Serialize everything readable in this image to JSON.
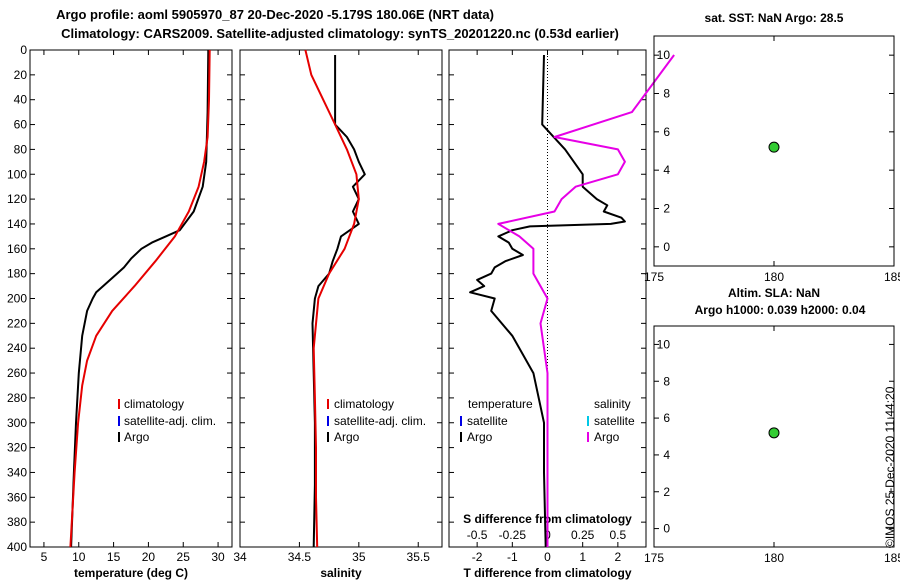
{
  "title_line1": "Argo profile: aoml 5905970_87 20-Dec-2020 -5.179S 180.06E (NRT data)",
  "title_line2": "Climatology: CARS2009. Satellite-adjusted climatology: synTS_20201220.nc (0.53d earlier)",
  "watermark": "©IMOS 25-Dec-2020 11:44:20",
  "colors": {
    "climatology": "#e60000",
    "satellite": "#0000e6",
    "argo": "#000000",
    "argo_salinity_diff": "#e600e6",
    "satellite_salinity_diff": "#00c8e6",
    "marker": "#33cc33"
  },
  "legend_main": [
    "climatology",
    "satellite-adj. clim.",
    "Argo"
  ],
  "legend_diff": {
    "left_title": "temperature",
    "left_items": [
      "satellite",
      "Argo"
    ],
    "right_title": "salinity",
    "right_items": [
      "satellite",
      "Argo"
    ]
  },
  "chart_data": [
    {
      "type": "line",
      "id": "temperature",
      "xlabel": "temperature (deg C)",
      "xlim": [
        3,
        32
      ],
      "ylim": [
        0,
        400
      ],
      "xticks": [
        5,
        10,
        15,
        20,
        25,
        30
      ],
      "yticks": [
        0,
        20,
        40,
        60,
        80,
        100,
        120,
        140,
        160,
        180,
        200,
        220,
        240,
        260,
        280,
        300,
        320,
        340,
        360,
        380,
        400
      ],
      "series": [
        {
          "name": "Argo",
          "color": "#000000",
          "depth": [
            0,
            50,
            90,
            110,
            130,
            145,
            150,
            155,
            160,
            168,
            175,
            180,
            185,
            190,
            195,
            200,
            210,
            230,
            260,
            300,
            340,
            370,
            400
          ],
          "values": [
            28.6,
            28.5,
            28.3,
            27.8,
            26.5,
            24.5,
            22.5,
            20.5,
            19.0,
            17.5,
            16.5,
            15.5,
            14.5,
            13.5,
            12.5,
            12.0,
            11.2,
            10.5,
            10.0,
            9.6,
            9.3,
            9.1,
            8.9
          ]
        },
        {
          "name": "climatology",
          "color": "#e60000",
          "depth": [
            0,
            40,
            70,
            90,
            110,
            130,
            150,
            170,
            190,
            210,
            230,
            250,
            270,
            300,
            340,
            380,
            400
          ],
          "values": [
            28.8,
            28.7,
            28.5,
            28.0,
            27.2,
            25.8,
            23.8,
            21.0,
            18.0,
            14.8,
            12.5,
            11.2,
            10.5,
            9.9,
            9.4,
            9.0,
            8.8
          ]
        }
      ]
    },
    {
      "type": "line",
      "id": "salinity",
      "xlabel": "salinity",
      "xlim": [
        34,
        35.7
      ],
      "ylim": [
        0,
        400
      ],
      "xticks": [
        34,
        34.5,
        35,
        35.5
      ],
      "tick_labels": [
        "34",
        "34.5",
        "35",
        "35.5"
      ],
      "series": [
        {
          "name": "Argo",
          "color": "#000000",
          "depth": [
            4,
            60,
            70,
            80,
            90,
            100,
            110,
            120,
            130,
            140,
            150,
            160,
            170,
            180,
            190,
            200,
            220,
            260,
            300,
            350,
            400
          ],
          "values": [
            34.8,
            34.8,
            34.9,
            34.96,
            35.0,
            35.05,
            34.95,
            35.0,
            34.95,
            35.0,
            34.85,
            34.82,
            34.78,
            34.75,
            34.66,
            34.63,
            34.61,
            34.62,
            34.63,
            34.63,
            34.62
          ]
        },
        {
          "name": "climatology",
          "color": "#e60000",
          "depth": [
            0,
            20,
            40,
            60,
            80,
            100,
            120,
            140,
            160,
            180,
            200,
            240,
            280,
            320,
            360,
            400
          ],
          "values": [
            34.55,
            34.6,
            34.7,
            34.8,
            34.9,
            34.98,
            35.0,
            34.96,
            34.88,
            34.75,
            34.66,
            34.62,
            34.63,
            34.64,
            34.64,
            34.65
          ]
        }
      ]
    },
    {
      "type": "line",
      "id": "difference",
      "xlabel": "T difference from climatology",
      "xlabel_top": "S difference from climatology",
      "xlim": [
        -2.8,
        2.8
      ],
      "ylim": [
        0,
        400
      ],
      "xticks": [
        -2,
        -1,
        0,
        1,
        2
      ],
      "top_ticks": [
        -0.5,
        -0.25,
        0,
        0.25,
        0.5
      ],
      "top_tick_labels": [
        "-0.5",
        "-0.25",
        "0",
        "0.25",
        "0.5"
      ],
      "series": [
        {
          "name": "Argo temperature",
          "color": "#000000",
          "depth": [
            4,
            60,
            80,
            100,
            110,
            120,
            125,
            130,
            135,
            138,
            140,
            142,
            145,
            150,
            155,
            160,
            165,
            170,
            175,
            180,
            185,
            190,
            195,
            200,
            210,
            230,
            260,
            300,
            340,
            400
          ],
          "values": [
            -0.1,
            -0.15,
            0.5,
            1.0,
            1.0,
            1.4,
            1.7,
            1.6,
            2.1,
            2.2,
            1.8,
            -0.5,
            -1.0,
            -1.4,
            -1.1,
            -1.0,
            -0.7,
            -1.2,
            -1.5,
            -1.6,
            -2.0,
            -1.8,
            -2.2,
            -1.5,
            -1.6,
            -1.0,
            -0.4,
            -0.1,
            -0.1,
            -0.05
          ]
        },
        {
          "name": "Argo salinity",
          "color": "#e600e6",
          "depth": [
            4,
            50,
            70,
            80,
            90,
            100,
            110,
            120,
            130,
            140,
            150,
            160,
            180,
            200,
            220,
            260,
            300,
            360,
            400
          ],
          "values": [
            0.9,
            0.6,
            0.05,
            0.5,
            0.55,
            0.5,
            0.2,
            0.1,
            0.05,
            -0.35,
            -0.2,
            -0.1,
            -0.1,
            0.0,
            -0.05,
            0.0,
            0.0,
            0.0,
            0.0
          ]
        }
      ]
    },
    {
      "type": "scatter",
      "id": "sst",
      "title": "sat. SST: NaN Argo: 28.5",
      "xlim": [
        175,
        185
      ],
      "ylim": [
        -1,
        11
      ],
      "xticks": [
        175,
        180,
        185
      ],
      "yticks": [
        0,
        2,
        4,
        6,
        8,
        10
      ],
      "points": [
        {
          "x": 180,
          "y": 5.2
        }
      ]
    },
    {
      "type": "scatter",
      "id": "sla",
      "title": "Altim. SLA: NaN",
      "title2": "Argo h1000: 0.039 h2000: 0.04",
      "xlim": [
        175,
        185
      ],
      "ylim": [
        -1,
        11
      ],
      "xticks": [
        175,
        180,
        185
      ],
      "yticks": [
        0,
        2,
        4,
        6,
        8,
        10
      ],
      "points": [
        {
          "x": 180,
          "y": 5.2
        }
      ]
    }
  ]
}
